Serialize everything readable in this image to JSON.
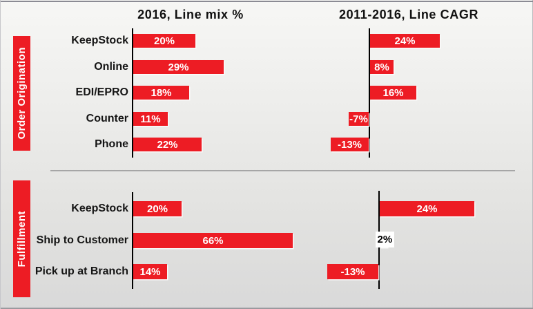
{
  "ui": {
    "column_titles": [
      {
        "label": "2016, Line mix %"
      },
      {
        "label": "2011-2016, Line CAGR"
      }
    ],
    "section_bands": [
      {
        "label": "Order Origination"
      },
      {
        "label": "Fulfillment"
      }
    ],
    "colors": {
      "bar_red": "#ed1c24",
      "band_red": "#ed1c24",
      "axis_black": "#000000",
      "boxed_label_bg": "#ffffff"
    }
  },
  "chart_data": [
    {
      "type": "bar",
      "orientation": "horizontal",
      "group": "Order Origination",
      "title": "2016, Line mix %",
      "categories": [
        "KeepStock",
        "Online",
        "EDI/EPRO",
        "Counter",
        "Phone"
      ],
      "values": [
        20,
        29,
        18,
        11,
        22
      ],
      "data_labels": [
        "20%",
        "29%",
        "18%",
        "11%",
        "22%"
      ],
      "unit": "%",
      "xlim": [
        0,
        32
      ],
      "bar_color": "#ed1c24",
      "grid": false,
      "legend": false,
      "show_category_labels": true
    },
    {
      "type": "bar",
      "orientation": "horizontal",
      "group": "Order Origination",
      "title": "2011-2016, Line CAGR",
      "categories": [
        "KeepStock",
        "Online",
        "EDI/EPRO",
        "Counter",
        "Phone"
      ],
      "values": [
        24,
        8,
        16,
        -7,
        -13
      ],
      "data_labels": [
        "24%",
        "8%",
        "16%",
        "-7%",
        "-13%"
      ],
      "unit": "%",
      "xlim": [
        -16,
        28
      ],
      "bar_color": "#ed1c24",
      "grid": false,
      "legend": false,
      "show_category_labels": false
    },
    {
      "type": "bar",
      "orientation": "horizontal",
      "group": "Fulfillment",
      "title": "2016, Line mix %",
      "categories": [
        "KeepStock",
        "Ship to Customer",
        "Pick up at Branch"
      ],
      "values": [
        20,
        66,
        14
      ],
      "data_labels": [
        "20%",
        "66%",
        "14%"
      ],
      "unit": "%",
      "xlim": [
        0,
        70
      ],
      "bar_color": "#ed1c24",
      "grid": false,
      "legend": false,
      "show_category_labels": true
    },
    {
      "type": "bar",
      "orientation": "horizontal",
      "group": "Fulfillment",
      "title": "2011-2016, Line CAGR",
      "categories": [
        "KeepStock",
        "Ship to Customer",
        "Pick up at Branch"
      ],
      "values": [
        24,
        2,
        -13
      ],
      "data_labels": [
        "24%",
        "2%",
        "-13%"
      ],
      "boxed_labels": [
        false,
        true,
        false
      ],
      "unit": "%",
      "xlim": [
        -16,
        28
      ],
      "bar_color": "#ed1c24",
      "grid": false,
      "legend": false,
      "show_category_labels": false
    }
  ]
}
